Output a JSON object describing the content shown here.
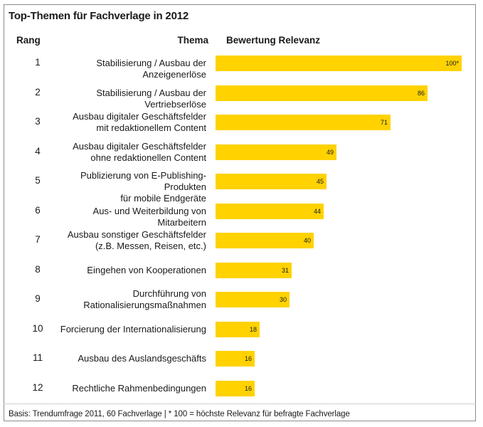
{
  "title": "Top-Themen für Fachverlage in 2012",
  "headers": {
    "rank": "Rang",
    "topic": "Thema",
    "rating": "Bewertung Relevanz"
  },
  "footer": "Basis: Trendumfrage 2011, 60 Fachverlage | * 100 = höchste Relevanz für befragte Fachverlage",
  "colors": {
    "bar": "#ffd200",
    "text": "#1a1a1a"
  },
  "chart_data": {
    "type": "bar",
    "orientation": "horizontal",
    "xlim": [
      0,
      100
    ],
    "grid": false,
    "rows": [
      {
        "rank": "1",
        "label": [
          "Stabilisierung / Ausbau der Anzeigenerlöse"
        ],
        "value": 100,
        "value_label": "100*"
      },
      {
        "rank": "2",
        "label": [
          "Stabilisierung / Ausbau der Vertriebserlöse"
        ],
        "value": 86,
        "value_label": "86"
      },
      {
        "rank": "3",
        "label": [
          "Ausbau digitaler Geschäftsfelder",
          "mit redaktionellem Content"
        ],
        "value": 71,
        "value_label": "71"
      },
      {
        "rank": "4",
        "label": [
          "Ausbau digitaler Geschäftsfelder",
          "ohne redaktionellen Content"
        ],
        "value": 49,
        "value_label": "49"
      },
      {
        "rank": "5",
        "label": [
          "Publizierung von E-Publishing-Produkten",
          "für mobile Endgeräte"
        ],
        "value": 45,
        "value_label": "45"
      },
      {
        "rank": "6",
        "label": [
          "Aus- und Weiterbildung von Mitarbeitern"
        ],
        "value": 44,
        "value_label": "44"
      },
      {
        "rank": "7",
        "label": [
          "Ausbau sonstiger Geschäftsfelder",
          "(z.B. Messen, Reisen, etc.)"
        ],
        "value": 40,
        "value_label": "40"
      },
      {
        "rank": "8",
        "label": [
          "Eingehen von Kooperationen"
        ],
        "value": 31,
        "value_label": "31"
      },
      {
        "rank": "9",
        "label": [
          "Durchführung von",
          "Rationalisierungsmaßnahmen"
        ],
        "value": 30,
        "value_label": "30"
      },
      {
        "rank": "10",
        "label": [
          "Forcierung der Internationalisierung"
        ],
        "value": 18,
        "value_label": "18"
      },
      {
        "rank": "11",
        "label": [
          "Ausbau des Auslandsgeschäfts"
        ],
        "value": 16,
        "value_label": "16"
      },
      {
        "rank": "12",
        "label": [
          "Rechtliche Rahmenbedingungen"
        ],
        "value": 16,
        "value_label": "16"
      }
    ]
  }
}
